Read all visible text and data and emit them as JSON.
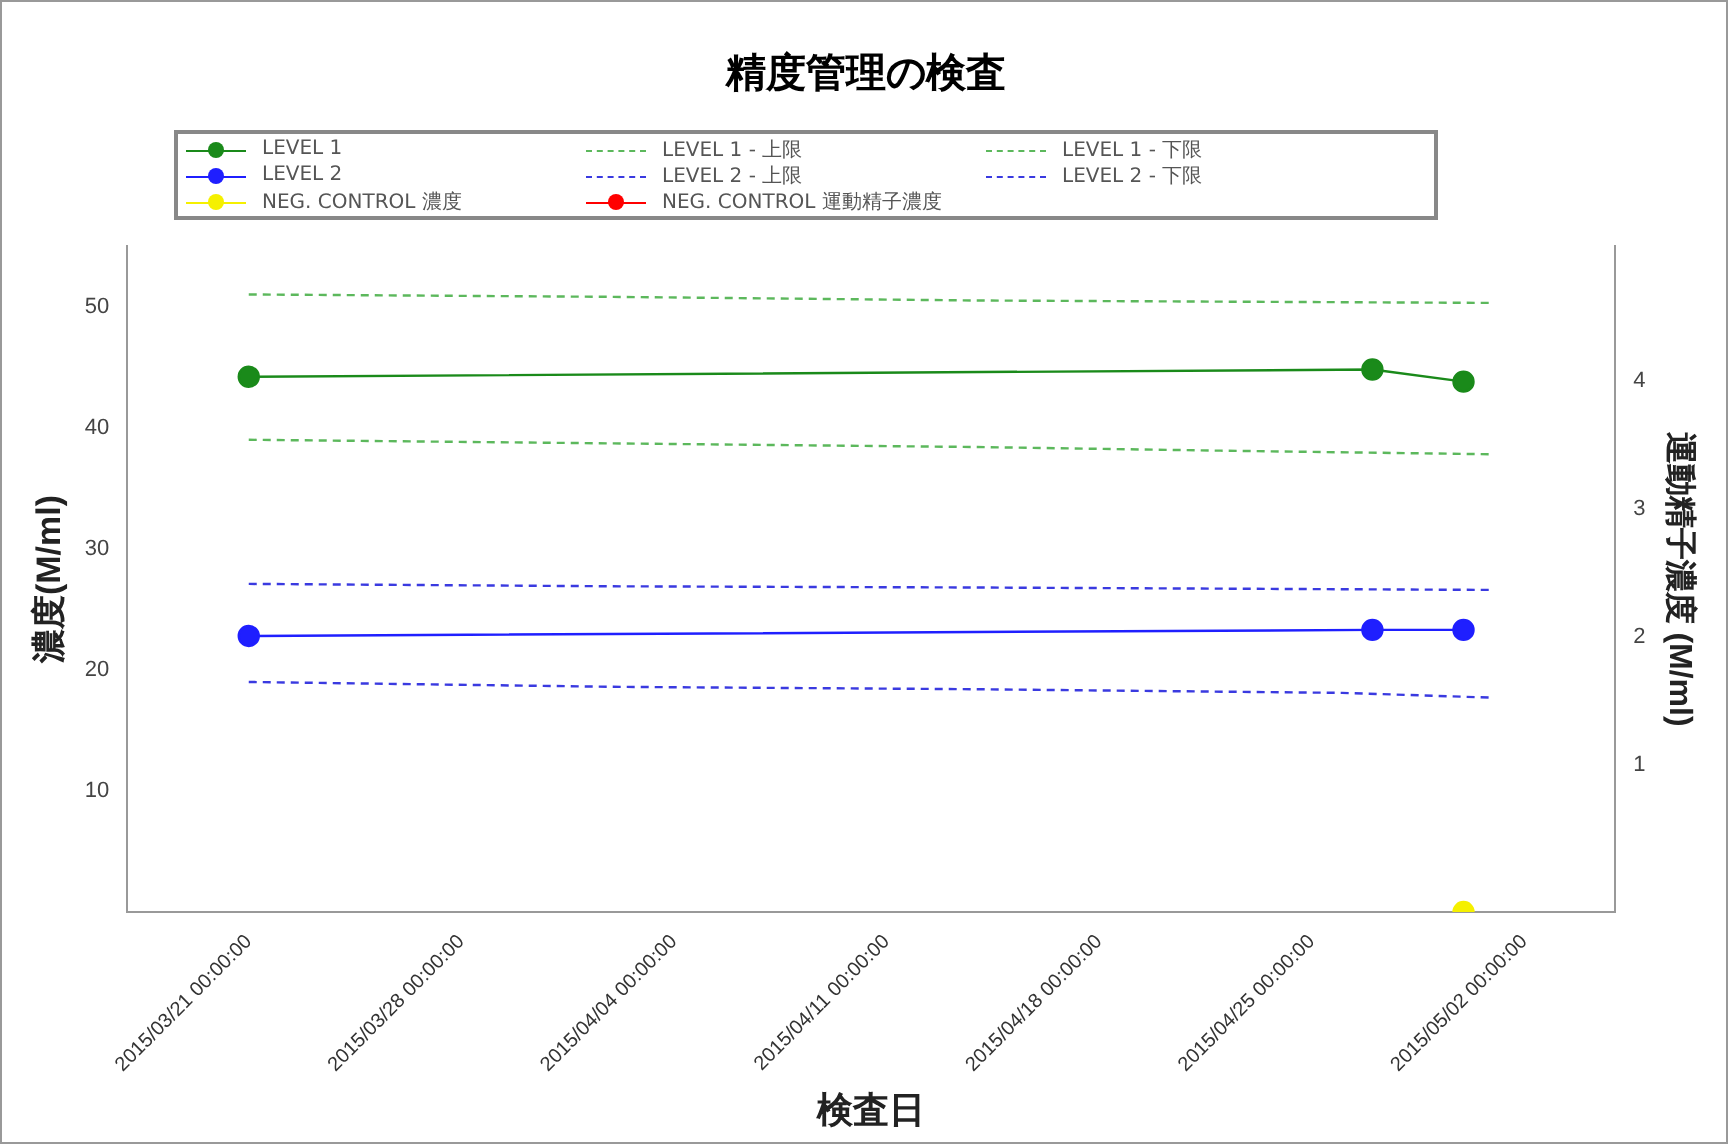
{
  "chart_data": {
    "type": "line",
    "title": "精度管理の検査",
    "xlabel": "検査日",
    "ylabel": "濃度(M/ml)",
    "y2label": "運動精子濃度 (M/ml)",
    "legend": "top",
    "grid": false,
    "x": [
      "2015-03-21",
      "2015-04-27",
      "2015-04-30"
    ],
    "xlim": [
      "2015-03-17",
      "2015-05-05"
    ],
    "xticks": [
      {
        "value": "2015-03-21",
        "label": "2015/03/21 00:00:00"
      },
      {
        "value": "2015-03-28",
        "label": "2015/03/28 00:00:00"
      },
      {
        "value": "2015-04-04",
        "label": "2015/04/04 00:00:00"
      },
      {
        "value": "2015-04-11",
        "label": "2015/04/11 00:00:00"
      },
      {
        "value": "2015-04-18",
        "label": "2015/04/18 00:00:00"
      },
      {
        "value": "2015-04-25",
        "label": "2015/04/25 00:00:00"
      },
      {
        "value": "2015-05-02",
        "label": "2015/05/02 00:00:00"
      }
    ],
    "ylim": [
      0,
      55
    ],
    "yticks": [
      10,
      20,
      30,
      40,
      50
    ],
    "y2lim": [
      -0.15,
      5.05
    ],
    "y2ticks": [
      1,
      2,
      3,
      4
    ],
    "series": [
      {
        "name": "LEVEL 1",
        "color": "#1a8a1a",
        "marker": "circle",
        "line_style": "solid",
        "values": [
          44.2,
          44.8,
          43.8
        ]
      },
      {
        "name": "LEVEL 1 - 上限",
        "color": "#5cb85c",
        "marker": "none",
        "line_style": "dashed",
        "x": [
          "2015-03-21",
          "2015-04-02",
          "2015-04-14",
          "2015-05-01"
        ],
        "values": [
          51.0,
          50.8,
          50.5,
          50.3
        ]
      },
      {
        "name": "LEVEL 1 - 下限",
        "color": "#5cb85c",
        "marker": "none",
        "line_style": "dashed",
        "x": [
          "2015-03-21",
          "2015-04-02",
          "2015-04-14",
          "2015-04-22",
          "2015-05-01"
        ],
        "values": [
          39.0,
          38.7,
          38.4,
          38.1,
          37.8
        ]
      },
      {
        "name": "LEVEL 2",
        "color": "#1f1fff",
        "marker": "circle",
        "line_style": "solid",
        "values": [
          22.8,
          23.3,
          23.3
        ]
      },
      {
        "name": "LEVEL 2 - 上限",
        "color": "#3a3ae0",
        "marker": "none",
        "line_style": "dashed",
        "x": [
          "2015-03-21",
          "2015-04-02",
          "2015-04-14",
          "2015-05-01"
        ],
        "values": [
          27.1,
          26.9,
          26.8,
          26.6
        ]
      },
      {
        "name": "LEVEL 2 - 下限",
        "color": "#3a3ae0",
        "marker": "none",
        "line_style": "dashed",
        "x": [
          "2015-03-21",
          "2015-04-02",
          "2015-04-14",
          "2015-04-26",
          "2015-05-01"
        ],
        "values": [
          19.0,
          18.6,
          18.4,
          18.1,
          17.7
        ]
      },
      {
        "name": "NEG. CONTROL 濃度",
        "color": "#f5f000",
        "marker": "circle",
        "line_style": "solid",
        "x": [
          "2015-04-30"
        ],
        "values": [
          0
        ]
      },
      {
        "name": "NEG. CONTROL 運動精子濃度",
        "color": "#ff0000",
        "marker": "circle",
        "line_style": "solid",
        "values": [
          null,
          null,
          null
        ]
      }
    ]
  }
}
